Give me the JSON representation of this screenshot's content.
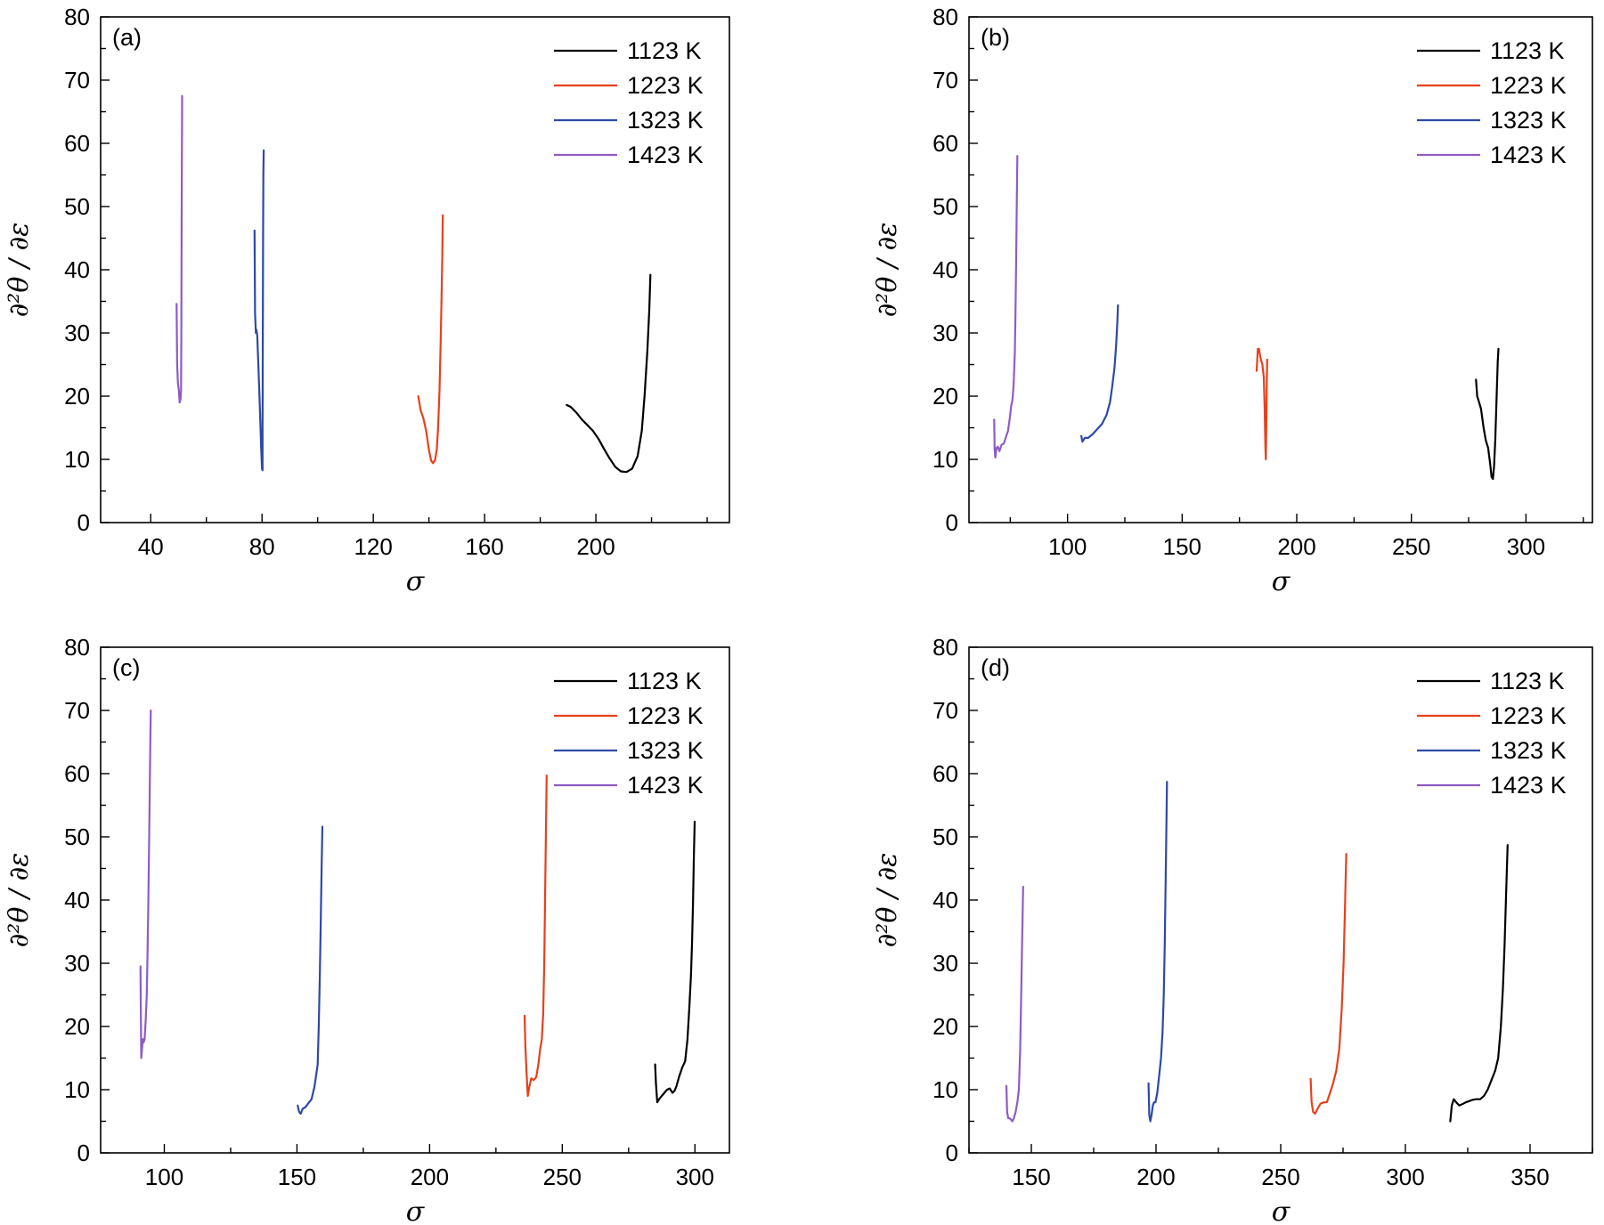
{
  "chart_data": [
    {
      "type": "line",
      "panel_label": "(a)",
      "xlabel": "σ",
      "ylabel": "∂²θ / ∂ε",
      "xlim": [
        22,
        248
      ],
      "ylim": [
        0,
        80
      ],
      "xticks": [
        40,
        80,
        120,
        160,
        200
      ],
      "yticks": [
        0,
        10,
        20,
        30,
        40,
        50,
        60,
        70,
        80
      ],
      "legend_position": "top-right",
      "series": [
        {
          "name": "1123 K",
          "color": "#000000",
          "x": [
            189.5,
            191,
            193,
            195,
            197,
            199,
            201,
            203,
            205,
            207,
            209,
            211,
            213,
            215,
            216.5,
            217.5,
            218.5,
            219.2,
            219.6
          ],
          "y": [
            18.6,
            18.3,
            17.4,
            16.3,
            15.4,
            14.5,
            13.2,
            11.6,
            10.1,
            8.8,
            8.1,
            8.0,
            8.5,
            10.5,
            14.5,
            20.0,
            27.0,
            33.5,
            39.2
          ]
        },
        {
          "name": "1223 K",
          "color": "#e8401c",
          "x": [
            136.2,
            137,
            138,
            139,
            140,
            140.8,
            141.5,
            142.2,
            142.8,
            143.3,
            143.8,
            144.2,
            144.5,
            144.8,
            145.0
          ],
          "y": [
            20.0,
            17.8,
            16.5,
            14.5,
            11.5,
            9.8,
            9.4,
            9.9,
            11.5,
            15.0,
            21.0,
            28.0,
            35.0,
            42.0,
            48.6
          ]
        },
        {
          "name": "1323 K",
          "color": "#2d49a7",
          "x": [
            77.3,
            77.5,
            77.8,
            78.0,
            78.3,
            78.6,
            79.0,
            79.4,
            79.7,
            80.0,
            80.2,
            80.2,
            80.3,
            80.4,
            80.5,
            80.6
          ],
          "y": [
            46.2,
            33.0,
            30.0,
            30.5,
            29.5,
            26.0,
            21.0,
            16.0,
            12.0,
            8.5,
            8.3,
            15.0,
            30.0,
            45.0,
            55.0,
            58.9
          ]
        },
        {
          "name": "1423 K",
          "color": "#8e5cc4",
          "x": [
            49.3,
            49.5,
            49.8,
            50.1,
            50.4,
            50.7,
            50.9,
            51.0,
            51.1,
            51.2,
            51.25,
            51.3
          ],
          "y": [
            34.6,
            25.0,
            22.0,
            21.0,
            19.0,
            19.5,
            21.0,
            30.0,
            45.0,
            57.0,
            63.0,
            67.5
          ]
        }
      ]
    },
    {
      "type": "line",
      "panel_label": "(b)",
      "xlabel": "σ",
      "ylabel": "∂²θ / ∂ε",
      "xlim": [
        57,
        329
      ],
      "ylim": [
        0,
        80
      ],
      "xticks": [
        100,
        150,
        200,
        250,
        300
      ],
      "yticks": [
        0,
        10,
        20,
        30,
        40,
        50,
        60,
        70,
        80
      ],
      "legend_position": "top-right",
      "series": [
        {
          "name": "1123 K",
          "color": "#000000",
          "x": [
            278.2,
            278.7,
            279.4,
            280.4,
            281.5,
            282.5,
            283.5,
            284.3,
            285.0,
            285.6,
            286.1,
            286.6,
            287.0,
            287.4,
            287.7,
            288.0
          ],
          "y": [
            22.6,
            20.0,
            19.2,
            18.0,
            15.0,
            13.0,
            11.8,
            9.5,
            7.2,
            6.9,
            9.0,
            13.0,
            17.5,
            22.0,
            25.5,
            27.5
          ]
        },
        {
          "name": "1223 K",
          "color": "#e8401c",
          "x": [
            182.5,
            183.0,
            183.5,
            184.2,
            185.0,
            185.6,
            186.0,
            186.3,
            186.5,
            186.7,
            186.9,
            187.1
          ],
          "y": [
            24.0,
            27.5,
            27.5,
            26.0,
            25.0,
            23.0,
            18.0,
            12.0,
            10.0,
            15.0,
            21.0,
            25.8
          ]
        },
        {
          "name": "1323 K",
          "color": "#2d49a7",
          "x": [
            106.0,
            106.5,
            107.5,
            109.0,
            111.0,
            113.0,
            115.0,
            117.0,
            118.5,
            119.5,
            120.5,
            121.2,
            121.7,
            122.0
          ],
          "y": [
            13.7,
            12.8,
            13.4,
            13.4,
            14.0,
            14.8,
            15.6,
            17.0,
            19.0,
            21.5,
            24.5,
            28.0,
            31.5,
            34.4
          ]
        },
        {
          "name": "1423 K",
          "color": "#8e5cc4",
          "x": [
            68.0,
            68.2,
            68.5,
            69.0,
            69.6,
            70.3,
            71.2,
            72.2,
            73.1,
            74.0,
            74.8,
            75.4,
            76.0,
            76.5,
            77.0,
            77.3,
            77.6,
            77.9,
            78.1
          ],
          "y": [
            16.3,
            11.5,
            10.3,
            11.8,
            12.0,
            11.3,
            12.3,
            12.5,
            13.5,
            14.5,
            16.5,
            18.5,
            19.5,
            22.0,
            27.0,
            33.0,
            42.0,
            52.0,
            58.0
          ]
        }
      ]
    },
    {
      "type": "line",
      "panel_label": "(c)",
      "xlabel": "σ",
      "ylabel": "∂²θ / ∂ε",
      "xlim": [
        76,
        313
      ],
      "ylim": [
        0,
        80
      ],
      "xticks": [
        100,
        150,
        200,
        250,
        300
      ],
      "yticks": [
        0,
        10,
        20,
        30,
        40,
        50,
        60,
        70,
        80
      ],
      "legend_position": "top-right",
      "series": [
        {
          "name": "1123 K",
          "color": "#000000",
          "x": [
            285.0,
            285.3,
            285.8,
            286.5,
            287.5,
            288.5,
            289.5,
            290.5,
            291.5,
            292.3,
            293.0,
            294.0,
            295.2,
            296.3,
            297.2,
            297.9,
            298.5,
            298.9,
            299.3,
            299.6,
            299.9
          ],
          "y": [
            14.0,
            11.0,
            8.0,
            8.5,
            9.0,
            9.5,
            10.0,
            10.2,
            9.5,
            9.8,
            10.5,
            12.0,
            13.5,
            14.5,
            18.0,
            23.0,
            28.0,
            33.0,
            40.0,
            47.0,
            52.4
          ]
        },
        {
          "name": "1223 K",
          "color": "#e8401c",
          "x": [
            235.8,
            236.1,
            236.5,
            237.0,
            237.6,
            238.3,
            239.2,
            240.2,
            241.0,
            241.7,
            242.3,
            242.8,
            243.2,
            243.5,
            243.8,
            244.1
          ],
          "y": [
            21.7,
            17.0,
            13.0,
            9.0,
            10.5,
            11.8,
            11.5,
            12.0,
            14.0,
            16.5,
            18.0,
            22.0,
            30.0,
            40.0,
            50.0,
            59.7
          ]
        },
        {
          "name": "1323 K",
          "color": "#2d49a7",
          "x": [
            150.3,
            150.8,
            151.4,
            152.2,
            153.1,
            154.2,
            155.5,
            156.6,
            157.3,
            157.8,
            158.2,
            158.6,
            159.0,
            159.3,
            159.6
          ],
          "y": [
            7.5,
            6.5,
            6.2,
            7.0,
            7.2,
            7.8,
            8.5,
            10.5,
            12.5,
            14.0,
            20.0,
            28.0,
            37.0,
            45.0,
            51.6
          ]
        },
        {
          "name": "1423 K",
          "color": "#8e5cc4",
          "x": [
            91.0,
            91.3,
            91.6,
            91.9,
            92.2,
            92.6,
            93.0,
            93.4,
            93.7,
            94.0,
            94.3,
            94.5,
            94.7,
            94.9
          ],
          "y": [
            29.5,
            15.0,
            16.5,
            18.0,
            17.5,
            18.0,
            21.0,
            25.0,
            32.0,
            40.0,
            50.0,
            57.0,
            64.0,
            70.0
          ]
        }
      ]
    },
    {
      "type": "line",
      "panel_label": "(d)",
      "xlabel": "σ",
      "ylabel": "∂²θ / ∂ε",
      "xlim": [
        125,
        375
      ],
      "ylim": [
        0,
        80
      ],
      "xticks": [
        150,
        200,
        250,
        300,
        350
      ],
      "yticks": [
        0,
        10,
        20,
        30,
        40,
        50,
        60,
        70,
        80
      ],
      "legend_position": "top-right",
      "series": [
        {
          "name": "1123 K",
          "color": "#000000",
          "x": [
            318.0,
            318.6,
            319.4,
            320.4,
            321.6,
            322.8,
            324.2,
            325.6,
            327.0,
            328.5,
            330.0,
            331.5,
            333.0,
            334.5,
            336.0,
            337.2,
            338.3,
            339.1,
            339.8,
            340.4,
            341.0
          ],
          "y": [
            5.0,
            7.5,
            8.5,
            8.0,
            7.5,
            7.7,
            8.0,
            8.2,
            8.4,
            8.5,
            8.5,
            9.0,
            10.0,
            11.5,
            13.0,
            15.0,
            20.0,
            26.0,
            33.0,
            41.0,
            48.7
          ]
        },
        {
          "name": "1223 K",
          "color": "#e8401c",
          "x": [
            262.0,
            262.4,
            263.0,
            263.8,
            264.8,
            266.0,
            267.3,
            268.5,
            269.8,
            271.0,
            272.3,
            273.5,
            274.5,
            275.2,
            275.8,
            276.3
          ],
          "y": [
            11.7,
            8.0,
            6.5,
            6.2,
            7.0,
            7.8,
            8.0,
            8.0,
            9.5,
            11.0,
            13.0,
            16.5,
            23.0,
            30.0,
            39.0,
            47.3
          ]
        },
        {
          "name": "1323 K",
          "color": "#2d49a7",
          "x": [
            197.0,
            197.3,
            197.7,
            198.2,
            198.7,
            199.2,
            199.8,
            200.5,
            201.2,
            202.0,
            202.6,
            203.1,
            203.5,
            203.8,
            204.1,
            204.4
          ],
          "y": [
            11.0,
            6.0,
            5.0,
            6.0,
            7.5,
            8.0,
            8.0,
            9.5,
            12.0,
            15.0,
            19.0,
            25.0,
            33.0,
            41.0,
            50.0,
            58.7
          ]
        },
        {
          "name": "1423 K",
          "color": "#8e5cc4",
          "x": [
            140.0,
            140.3,
            140.7,
            141.2,
            141.8,
            142.4,
            143.0,
            143.7,
            144.4,
            145.0,
            145.5,
            145.9,
            146.3,
            146.7
          ],
          "y": [
            10.6,
            6.5,
            5.5,
            5.5,
            5.3,
            5.0,
            5.5,
            6.5,
            8.0,
            10.0,
            16.0,
            24.0,
            33.0,
            42.1
          ]
        }
      ]
    }
  ]
}
